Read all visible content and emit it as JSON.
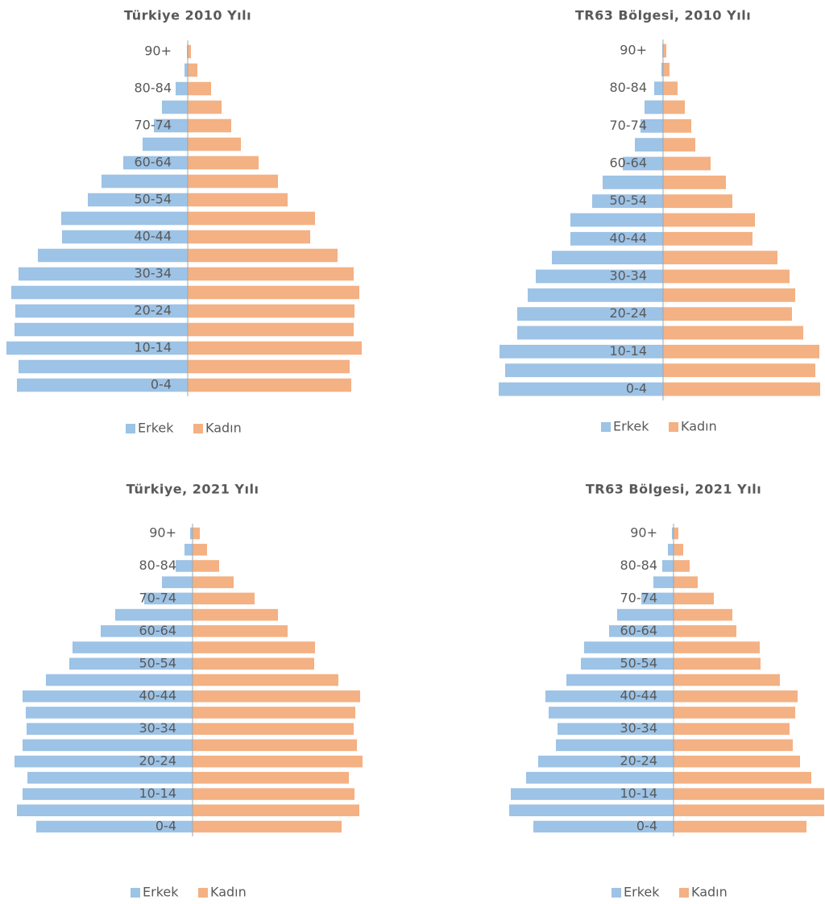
{
  "chart_data": [
    {
      "type": "bar",
      "orientation": "horizontal",
      "title": "Türkiye 2010 Yılı",
      "categories": [
        "0-4",
        null,
        "10-14",
        null,
        "20-24",
        null,
        "30-34",
        null,
        "40-44",
        null,
        "50-54",
        null,
        "60-64",
        null,
        "70-74",
        null,
        "80-84",
        null,
        "90+"
      ],
      "series": [
        {
          "name": "Erkek",
          "color": "#9dc3e6",
          "values": [
            -4.24,
            -4.2,
            -4.5,
            -4.3,
            -4.28,
            -4.38,
            -4.2,
            -3.72,
            -3.12,
            -3.14,
            -2.48,
            -2.14,
            -1.6,
            -1.12,
            -0.84,
            -0.64,
            -0.3,
            -0.08,
            -0.02
          ]
        },
        {
          "name": "Kadın",
          "color": "#f4b183",
          "values": [
            4.06,
            4.02,
            4.32,
            4.12,
            4.14,
            4.26,
            4.12,
            3.72,
            3.04,
            3.16,
            2.48,
            2.24,
            1.76,
            1.32,
            1.08,
            0.84,
            0.58,
            0.24,
            0.08
          ]
        }
      ],
      "xlim": [
        -4.56,
        4.56
      ]
    },
    {
      "type": "bar",
      "orientation": "horizontal",
      "title": "TR63 Bölgesi, 2010 Yılı",
      "categories": [
        "0-4",
        null,
        "10-14",
        null,
        "20-24",
        null,
        "30-34",
        null,
        "40-44",
        null,
        "50-54",
        null,
        "60-64",
        null,
        "70-74",
        null,
        "80-84",
        null,
        "90+"
      ],
      "series": [
        {
          "name": "Erkek",
          "color": "#9dc3e6",
          "values": [
            -4.08,
            -3.92,
            -4.06,
            -3.62,
            -3.62,
            -3.36,
            -3.16,
            -2.76,
            -2.3,
            -2.3,
            -1.76,
            -1.5,
            -1.0,
            -0.7,
            -0.56,
            -0.46,
            -0.22,
            -0.04,
            -0.02
          ]
        },
        {
          "name": "Kadın",
          "color": "#f4b183",
          "values": [
            3.9,
            3.78,
            3.88,
            3.48,
            3.2,
            3.28,
            3.14,
            2.84,
            2.22,
            2.28,
            1.72,
            1.56,
            1.18,
            0.8,
            0.7,
            0.54,
            0.36,
            0.16,
            0.08
          ]
        }
      ],
      "xlim": [
        -4.2,
        4.02
      ]
    },
    {
      "type": "bar",
      "orientation": "horizontal",
      "title": "Türkiye, 2021 Yılı",
      "categories": [
        "0-4",
        null,
        "10-14",
        null,
        "20-24",
        null,
        "30-34",
        null,
        "40-44",
        null,
        "50-54",
        null,
        "60-64",
        null,
        "70-74",
        null,
        "80-84",
        null,
        "90+"
      ],
      "series": [
        {
          "name": "Erkek",
          "color": "#9dc3e6",
          "values": [
            -3.88,
            -4.36,
            -4.22,
            -4.1,
            -4.42,
            -4.22,
            -4.12,
            -4.14,
            -4.22,
            -3.64,
            -3.06,
            -2.98,
            -2.28,
            -1.92,
            -1.2,
            -0.76,
            -0.42,
            -0.2,
            -0.06
          ]
        },
        {
          "name": "Kadın",
          "color": "#f4b183",
          "values": [
            3.7,
            4.14,
            4.02,
            3.88,
            4.22,
            4.08,
            4.0,
            4.04,
            4.16,
            3.62,
            3.02,
            3.04,
            2.36,
            2.12,
            1.54,
            1.02,
            0.66,
            0.36,
            0.18
          ]
        }
      ],
      "xlim": [
        -4.6,
        4.6
      ]
    },
    {
      "type": "bar",
      "orientation": "horizontal",
      "title": "TR63 Bölgesi, 2021 Yılı",
      "categories": [
        "0-4",
        null,
        "10-14",
        null,
        "20-24",
        null,
        "30-34",
        null,
        "40-44",
        null,
        "50-54",
        null,
        "60-64",
        null,
        "70-74",
        null,
        "80-84",
        null,
        "90+"
      ],
      "series": [
        {
          "name": "Erkek",
          "color": "#9dc3e6",
          "values": [
            -3.48,
            -4.08,
            -4.04,
            -3.66,
            -3.36,
            -2.92,
            -2.88,
            -3.1,
            -3.18,
            -2.66,
            -2.3,
            -2.22,
            -1.6,
            -1.4,
            -0.8,
            -0.5,
            -0.28,
            -0.14,
            -0.04
          ]
        },
        {
          "name": "Kadın",
          "color": "#f4b183",
          "values": [
            3.3,
            3.74,
            3.74,
            3.42,
            3.14,
            2.96,
            2.88,
            3.02,
            3.08,
            2.64,
            2.16,
            2.14,
            1.56,
            1.46,
            1.0,
            0.6,
            0.4,
            0.24,
            0.12
          ]
        }
      ],
      "xlim": [
        -4.12,
        3.76
      ]
    }
  ]
}
